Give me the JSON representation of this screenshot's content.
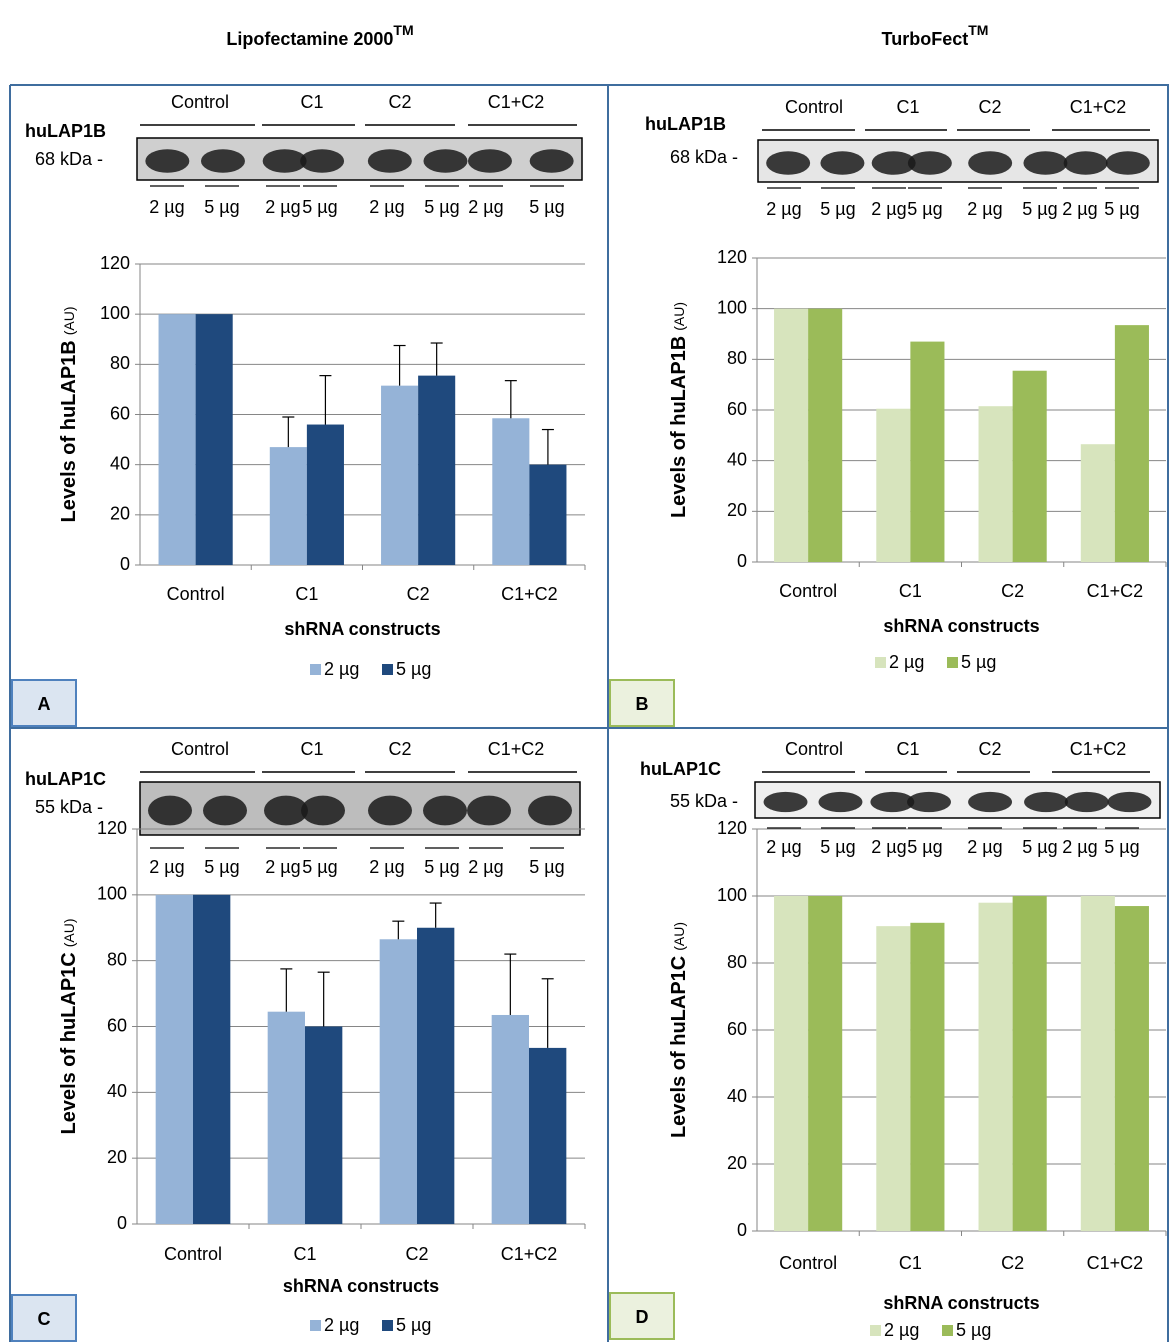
{
  "headers": [
    {
      "text": "Lipofectamine 2000",
      "sup": "TM"
    },
    {
      "text": "TurboFect",
      "sup": "TM"
    }
  ],
  "panels": [
    {
      "letter": "A",
      "protein": "huLAP1B",
      "size": "68 kDa -",
      "groups": [
        "Control",
        "C1",
        "C2",
        "C1+C2"
      ],
      "lanes": [
        "2 µg",
        "5 µg",
        "2 µg",
        "5 µg",
        "2 µg",
        "5 µg",
        "2 µg",
        "5 µg"
      ]
    },
    {
      "letter": "B",
      "protein": "huLAP1B",
      "size": "68 kDa -",
      "groups": [
        "Control",
        "C1",
        "C2",
        "C1+C2"
      ],
      "lanes": [
        "2 µg",
        "5 µg",
        "2 µg",
        "5 µg",
        "2 µg",
        "5 µg",
        "2 µg",
        "5 µg"
      ]
    },
    {
      "letter": "C",
      "protein": "huLAP1C",
      "size": "55 kDa -",
      "groups": [
        "Control",
        "C1",
        "C2",
        "C1+C2"
      ],
      "lanes": [
        "2 µg",
        "5 µg",
        "2 µg",
        "5 µg",
        "2 µg",
        "5 µg",
        "2 µg",
        "5 µg"
      ]
    },
    {
      "letter": "D",
      "protein": "huLAP1C",
      "size": "55 kDa -",
      "groups": [
        "Control",
        "C1",
        "C2",
        "C1+C2"
      ],
      "lanes": [
        "2 µg",
        "5 µg",
        "2 µg",
        "5 µg",
        "2 µg",
        "5 µg",
        "2 µg",
        "5 µg"
      ]
    }
  ],
  "chart_data": [
    {
      "type": "bar",
      "y_label": "Levels of huLAP1B",
      "y_label_unit": "(AU)",
      "x_label": "shRNA constructs",
      "categories": [
        "Control",
        "C1",
        "C2",
        "C1+C2"
      ],
      "series": [
        {
          "name": "2 µg",
          "color": "#95b3d7",
          "values": [
            100,
            47,
            71.5,
            58.5
          ],
          "errors": [
            null,
            12,
            16,
            15
          ]
        },
        {
          "name": "5 µg",
          "color": "#1f497d",
          "values": [
            100,
            56,
            75.5,
            40
          ],
          "errors": [
            null,
            19.5,
            13,
            14
          ]
        }
      ],
      "ylim": [
        0,
        120
      ],
      "yticks": [
        0,
        20,
        40,
        60,
        80,
        100,
        120
      ],
      "grid": true
    },
    {
      "type": "bar",
      "y_label": "Levels of huLAP1B",
      "y_label_unit": "(AU)",
      "x_label": "shRNA constructs",
      "categories": [
        "Control",
        "C1",
        "C2",
        "C1+C2"
      ],
      "series": [
        {
          "name": "2 µg",
          "color": "#d7e4bd",
          "values": [
            100,
            60.5,
            61.5,
            46.5
          ]
        },
        {
          "name": "5 µg",
          "color": "#9bbb59",
          "values": [
            100,
            87,
            75.5,
            93.5
          ]
        }
      ],
      "ylim": [
        0,
        120
      ],
      "yticks": [
        0,
        20,
        40,
        60,
        80,
        100,
        120
      ],
      "grid": true
    },
    {
      "type": "bar",
      "y_label": "Levels of huLAP1C",
      "y_label_unit": "(AU)",
      "x_label": "shRNA constructs",
      "categories": [
        "Control",
        "C1",
        "C2",
        "C1+C2"
      ],
      "series": [
        {
          "name": "2 µg",
          "color": "#95b3d7",
          "values": [
            100,
            64.5,
            86.5,
            63.5
          ],
          "errors": [
            null,
            13,
            5.5,
            18.5
          ]
        },
        {
          "name": "5 µg",
          "color": "#1f497d",
          "values": [
            100,
            60,
            90,
            53.5
          ],
          "errors": [
            null,
            16.5,
            7.5,
            21
          ]
        }
      ],
      "ylim": [
        0,
        120
      ],
      "yticks": [
        0,
        20,
        40,
        60,
        80,
        100,
        120
      ],
      "grid": true
    },
    {
      "type": "bar",
      "y_label": "Levels of huLAP1C",
      "y_label_unit": "(AU)",
      "x_label": "shRNA constructs",
      "categories": [
        "Control",
        "C1",
        "C2",
        "C1+C2"
      ],
      "series": [
        {
          "name": "2 µg",
          "color": "#d7e4bd",
          "values": [
            100,
            91,
            98,
            100
          ]
        },
        {
          "name": "5 µg",
          "color": "#9bbb59",
          "values": [
            100,
            92,
            100,
            97
          ]
        }
      ],
      "ylim": [
        0,
        120
      ],
      "yticks": [
        0,
        20,
        40,
        60,
        80,
        100,
        120
      ],
      "grid": true
    }
  ]
}
